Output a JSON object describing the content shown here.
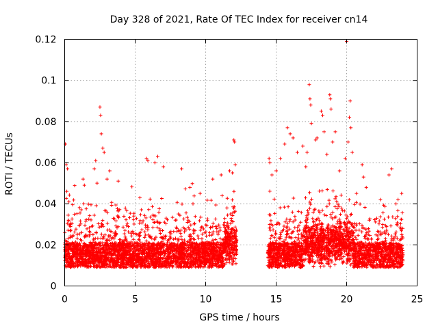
{
  "chart_data": {
    "type": "scatter",
    "title": "Day 328 of 2021, Rate Of TEC Index for receiver cn14",
    "xlabel": "GPS time / hours",
    "ylabel": "ROTI / TECUs",
    "xlim": [
      0,
      25
    ],
    "ylim": [
      0,
      0.12
    ],
    "x_ticks": [
      "0",
      "5",
      "10",
      "15",
      "20",
      "25"
    ],
    "y_ticks": [
      "0",
      "0.02",
      "0.04",
      "0.06",
      "0.08",
      "0.1",
      "0.12"
    ],
    "grid": true,
    "marker": "+",
    "color": "#ff0000",
    "series": [
      {
        "name": "ROTI",
        "segments": [
          {
            "start": 0.0,
            "end": 12.2
          },
          {
            "start": 14.4,
            "end": 24.0
          }
        ],
        "notable_points": [
          [
            0.05,
            0.069
          ],
          [
            0.1,
            0.059
          ],
          [
            0.2,
            0.057
          ],
          [
            0.15,
            0.046
          ],
          [
            0.3,
            0.041
          ],
          [
            1.3,
            0.052
          ],
          [
            1.4,
            0.049
          ],
          [
            2.1,
            0.057
          ],
          [
            2.2,
            0.061
          ],
          [
            2.3,
            0.05
          ],
          [
            2.5,
            0.087
          ],
          [
            2.55,
            0.083
          ],
          [
            2.6,
            0.074
          ],
          [
            2.7,
            0.067
          ],
          [
            2.8,
            0.065
          ],
          [
            3.0,
            0.052
          ],
          [
            3.2,
            0.056
          ],
          [
            3.8,
            0.051
          ],
          [
            5.8,
            0.062
          ],
          [
            5.9,
            0.061
          ],
          [
            6.4,
            0.06
          ],
          [
            6.6,
            0.063
          ],
          [
            7.0,
            0.058
          ],
          [
            8.3,
            0.057
          ],
          [
            9.1,
            0.04
          ],
          [
            9.6,
            0.045
          ],
          [
            10.5,
            0.052
          ],
          [
            11.1,
            0.054
          ],
          [
            11.7,
            0.056
          ],
          [
            11.9,
            0.055
          ],
          [
            12.0,
            0.071
          ],
          [
            12.05,
            0.07
          ],
          [
            12.1,
            0.059
          ],
          [
            14.5,
            0.062
          ],
          [
            14.55,
            0.06
          ],
          [
            14.7,
            0.054
          ],
          [
            15.0,
            0.056
          ],
          [
            15.3,
            0.062
          ],
          [
            15.6,
            0.069
          ],
          [
            15.8,
            0.077
          ],
          [
            16.0,
            0.074
          ],
          [
            16.2,
            0.072
          ],
          [
            16.5,
            0.065
          ],
          [
            16.9,
            0.068
          ],
          [
            17.1,
            0.058
          ],
          [
            17.2,
            0.065
          ],
          [
            17.35,
            0.098
          ],
          [
            17.4,
            0.091
          ],
          [
            17.45,
            0.088
          ],
          [
            17.5,
            0.079
          ],
          [
            17.8,
            0.071
          ],
          [
            17.9,
            0.072
          ],
          [
            18.2,
            0.085
          ],
          [
            18.3,
            0.083
          ],
          [
            18.4,
            0.075
          ],
          [
            18.6,
            0.064
          ],
          [
            18.8,
            0.093
          ],
          [
            18.85,
            0.091
          ],
          [
            18.9,
            0.086
          ],
          [
            19.0,
            0.07
          ],
          [
            19.2,
            0.075
          ],
          [
            19.5,
            0.056
          ],
          [
            19.9,
            0.062
          ],
          [
            20.0,
            0.119
          ],
          [
            20.1,
            0.07
          ],
          [
            20.2,
            0.082
          ],
          [
            20.25,
            0.09
          ],
          [
            20.3,
            0.077
          ],
          [
            20.4,
            0.065
          ],
          [
            20.7,
            0.045
          ],
          [
            21.1,
            0.059
          ],
          [
            21.2,
            0.053
          ],
          [
            21.6,
            0.032
          ],
          [
            22.4,
            0.042
          ],
          [
            23.0,
            0.054
          ],
          [
            23.2,
            0.057
          ],
          [
            23.5,
            0.04
          ],
          [
            23.9,
            0.045
          ]
        ]
      }
    ]
  }
}
